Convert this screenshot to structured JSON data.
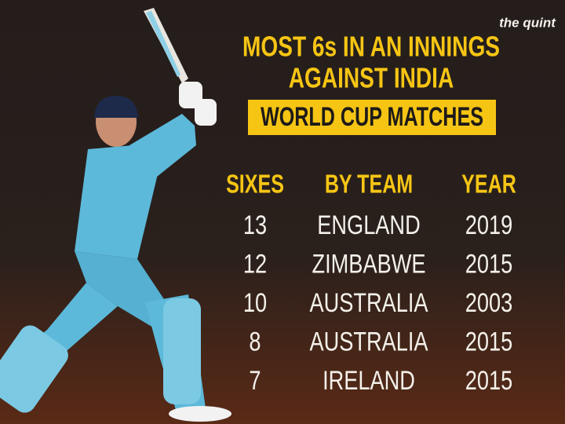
{
  "brand": {
    "logo_text": "the quint"
  },
  "header": {
    "title_lines": [
      "MOST 6s IN AN INNINGS",
      "AGAINST INDIA"
    ],
    "subtitle": "WORLD CUP MATCHES"
  },
  "table": {
    "columns": [
      "SIXES",
      "BY TEAM",
      "YEAR"
    ],
    "rows": [
      [
        13,
        "ENGLAND",
        2019
      ],
      [
        12,
        "ZIMBABWE",
        2015
      ],
      [
        10,
        "AUSTRALIA",
        2003
      ],
      [
        8,
        "AUSTRALIA",
        2015
      ],
      [
        7,
        "IRELAND",
        2015
      ]
    ]
  }
}
